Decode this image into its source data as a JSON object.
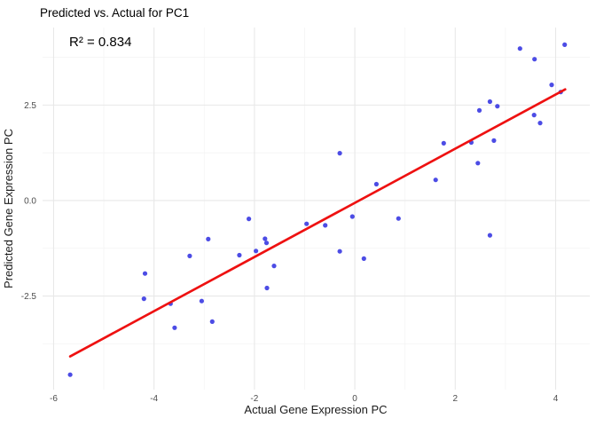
{
  "chart_data": {
    "type": "scatter",
    "title": "Predicted vs. Actual for PC1",
    "annotation": "R² = 0.834",
    "r_squared": 0.834,
    "xlabel": "Actual Gene Expression PC",
    "ylabel": "Predicted Gene Expression PC",
    "xlim": [
      -6.22,
      4.68
    ],
    "ylim": [
      -4.95,
      4.53
    ],
    "x_major_ticks": [
      -6,
      -4,
      -2,
      0,
      2,
      4
    ],
    "x_tick_labels": [
      "-6",
      "-4",
      "-2",
      "0",
      "2",
      "4"
    ],
    "x_minor_ticks": [
      -5,
      -3,
      -1,
      1,
      3
    ],
    "y_major_ticks": [
      2.5,
      0,
      -2.5
    ],
    "y_tick_labels": [
      "2.5",
      "0.0",
      "-2.5"
    ],
    "y_minor_ticks": [
      3.75,
      1.25,
      -1.25,
      -3.75
    ],
    "grid": true,
    "legend": false,
    "points": [
      [
        -5.67,
        -4.56
      ],
      [
        -4.2,
        -2.57
      ],
      [
        -4.18,
        -1.91
      ],
      [
        -3.67,
        -2.7
      ],
      [
        -3.59,
        -3.33
      ],
      [
        -3.29,
        -1.45
      ],
      [
        -3.05,
        -2.63
      ],
      [
        -2.92,
        -1.01
      ],
      [
        -2.84,
        -3.17
      ],
      [
        -2.3,
        -1.43
      ],
      [
        -2.11,
        -0.48
      ],
      [
        -1.97,
        -1.32
      ],
      [
        -1.79,
        -1.0
      ],
      [
        -1.76,
        -1.11
      ],
      [
        -1.75,
        -2.29
      ],
      [
        -1.61,
        -1.71
      ],
      [
        -0.96,
        -0.61
      ],
      [
        -0.59,
        -0.65
      ],
      [
        -0.3,
        1.24
      ],
      [
        -0.3,
        -1.33
      ],
      [
        -0.05,
        -0.42
      ],
      [
        0.18,
        -1.52
      ],
      [
        0.43,
        0.43
      ],
      [
        0.87,
        -0.47
      ],
      [
        1.61,
        0.54
      ],
      [
        1.77,
        1.5
      ],
      [
        2.32,
        1.52
      ],
      [
        2.45,
        0.98
      ],
      [
        2.48,
        2.36
      ],
      [
        2.69,
        -0.91
      ],
      [
        2.69,
        2.59
      ],
      [
        2.77,
        1.57
      ],
      [
        2.84,
        2.47
      ],
      [
        3.29,
        3.98
      ],
      [
        3.57,
        2.24
      ],
      [
        3.58,
        3.7
      ],
      [
        3.69,
        2.03
      ],
      [
        3.92,
        3.03
      ],
      [
        4.1,
        2.84
      ],
      [
        4.18,
        4.08
      ]
    ],
    "regression_line": {
      "x1": -5.67,
      "y1": -4.08,
      "x2": 4.19,
      "y2": 2.91
    },
    "colors": {
      "point": "#3838E2",
      "line": "#EE1111",
      "grid_major": "#E8E8E8",
      "grid_minor": "#F4F4F4",
      "tick_label": "#4D4D4D",
      "axis_title": "#1A1A1A",
      "title": "#000000",
      "background": "#FFFFFF"
    }
  }
}
